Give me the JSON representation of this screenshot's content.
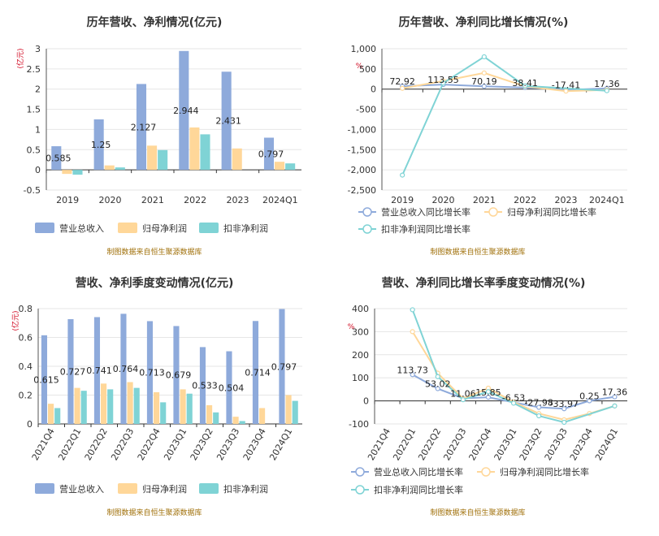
{
  "colors": {
    "revenue": "#8eaadb",
    "net_profit": "#ffd799",
    "deducted_profit": "#7fd3d5",
    "axis_text": "#333333",
    "unit_red": "#d0021b",
    "footnote": "#a0700a",
    "grid": "#e6e6e6"
  },
  "legend_labels": {
    "revenue": "营业总收入",
    "net_profit": "归母净利润",
    "deducted_profit": "扣非净利润",
    "revenue_growth": "营业总收入同比增长率",
    "net_profit_growth": "归母净利润同比增长率",
    "deducted_profit_growth": "扣非净利润同比增长率"
  },
  "footnote": "制图数据来自恒生聚源数据库",
  "chart_data": [
    {
      "id": "annual_amount",
      "type": "bar",
      "title": "历年营收、净利情况(亿元)",
      "unit_label": "(亿元)",
      "categories": [
        "2019",
        "2020",
        "2021",
        "2022",
        "2023",
        "2024Q1"
      ],
      "ylim": [
        -0.5,
        3
      ],
      "yticks": [
        "-0.5",
        "0",
        "0.5",
        "1",
        "1.5",
        "2",
        "2.5",
        "3"
      ],
      "ytick_values": [
        -0.5,
        0,
        0.5,
        1,
        1.5,
        2,
        2.5,
        3
      ],
      "series": [
        {
          "key": "revenue",
          "values": [
            0.585,
            1.25,
            2.127,
            2.944,
            2.431,
            0.797
          ],
          "labels": [
            "0.585",
            "1.25",
            "2.127",
            "2.944",
            "2.431",
            "0.797"
          ]
        },
        {
          "key": "net_profit",
          "values": [
            -0.1,
            0.11,
            0.6,
            1.05,
            0.53,
            0.2
          ]
        },
        {
          "key": "deducted_profit",
          "values": [
            -0.12,
            0.06,
            0.49,
            0.88,
            null,
            0.16
          ]
        }
      ],
      "grid": true
    },
    {
      "id": "annual_growth",
      "type": "line",
      "title": "历年营收、净利同比增长情况(%)",
      "unit_label": "%",
      "categories": [
        "2019",
        "2020",
        "2021",
        "2022",
        "2023",
        "2024Q1"
      ],
      "ylim": [
        -2500,
        1000
      ],
      "yticks": [
        "-2,500",
        "-2,000",
        "-1,500",
        "-1,000",
        "-500",
        "0",
        "500",
        "1,000"
      ],
      "ytick_values": [
        -2500,
        -2000,
        -1500,
        -1000,
        -500,
        0,
        500,
        1000
      ],
      "series": [
        {
          "key": "revenue_growth",
          "values": [
            72.92,
            113.55,
            70.19,
            38.41,
            -17.41,
            17.36
          ],
          "labels": [
            "72.92",
            "113.55",
            "70.19",
            "38.41",
            "-17.41",
            "17.36"
          ]
        },
        {
          "key": "net_profit_growth",
          "values": [
            20,
            200,
            400,
            70,
            -50,
            -20
          ]
        },
        {
          "key": "deducted_profit_growth",
          "values": [
            -2130,
            150,
            800,
            80,
            null,
            -40
          ]
        }
      ],
      "grid": true
    },
    {
      "id": "quarterly_amount",
      "type": "bar",
      "title": "营收、净利季度变动情况(亿元)",
      "unit_label": "(亿元)",
      "categories": [
        "2021Q4",
        "2022Q1",
        "2022Q2",
        "2022Q3",
        "2022Q4",
        "2023Q1",
        "2023Q2",
        "2023Q3",
        "2023Q4",
        "2024Q1"
      ],
      "ylim": [
        0,
        0.8
      ],
      "yticks": [
        "0",
        "0.2",
        "0.4",
        "0.6",
        "0.8"
      ],
      "ytick_values": [
        0,
        0.2,
        0.4,
        0.6,
        0.8
      ],
      "series": [
        {
          "key": "revenue",
          "values": [
            0.615,
            0.727,
            0.741,
            0.764,
            0.713,
            0.679,
            0.533,
            0.504,
            0.714,
            0.797
          ],
          "labels": [
            "0.615",
            "0.727",
            "0.741",
            "0.764",
            "0.713",
            "0.679",
            "0.533",
            "0.504",
            "0.714",
            "0.797"
          ]
        },
        {
          "key": "net_profit",
          "values": [
            0.14,
            0.25,
            0.28,
            0.29,
            0.22,
            0.24,
            0.13,
            0.05,
            0.11,
            0.2
          ]
        },
        {
          "key": "deducted_profit",
          "values": [
            0.11,
            0.23,
            0.24,
            0.25,
            0.15,
            0.21,
            0.08,
            0.02,
            null,
            0.16
          ]
        }
      ],
      "grid": true
    },
    {
      "id": "quarterly_growth",
      "type": "line",
      "title": "营收、净利同比增长率季度变动情况(%)",
      "unit_label": "%",
      "categories": [
        "2021Q4",
        "2022Q1",
        "2022Q2",
        "2022Q3",
        "2022Q4",
        "2023Q1",
        "2023Q2",
        "2023Q3",
        "2023Q4",
        "2024Q1"
      ],
      "ylim": [
        -100,
        400
      ],
      "yticks": [
        "-100",
        "0",
        "100",
        "200",
        "300",
        "400"
      ],
      "ytick_values": [
        -100,
        0,
        100,
        200,
        300,
        400
      ],
      "series": [
        {
          "key": "revenue_growth",
          "values": [
            null,
            113.73,
            53.02,
            11.06,
            15.85,
            -6.53,
            -27.98,
            -33.97,
            0.25,
            17.36
          ],
          "labels": [
            "",
            "113.73",
            "53.02",
            "11.06",
            "15.85",
            "-6.53",
            "-27.98",
            "-33.97",
            "0.25",
            "17.36"
          ]
        },
        {
          "key": "net_profit_growth",
          "values": [
            null,
            300,
            120,
            10,
            55,
            -5,
            -55,
            -82,
            -55,
            -22
          ]
        },
        {
          "key": "deducted_profit_growth",
          "values": [
            null,
            395,
            105,
            5,
            40,
            -10,
            -65,
            -93,
            null,
            -22
          ]
        }
      ],
      "grid": true
    }
  ]
}
